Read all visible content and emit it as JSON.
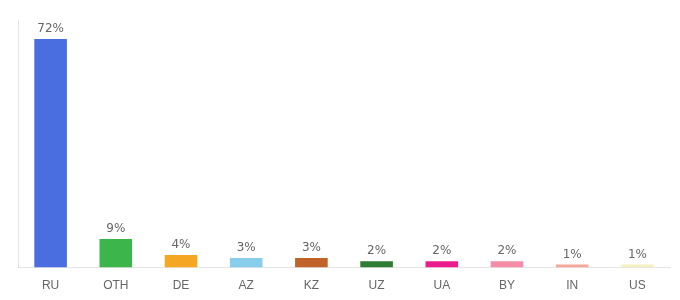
{
  "chart_data": {
    "type": "bar",
    "categories": [
      "RU",
      "OTH",
      "DE",
      "AZ",
      "KZ",
      "UZ",
      "UA",
      "BY",
      "IN",
      "US"
    ],
    "values": [
      72,
      9,
      4,
      3,
      3,
      2,
      2,
      2,
      1,
      1
    ],
    "value_labels": [
      "72%",
      "9%",
      "4%",
      "3%",
      "3%",
      "2%",
      "2%",
      "2%",
      "1%",
      "1%"
    ],
    "colors": [
      "#4a6ee0",
      "#3cb54a",
      "#f5a623",
      "#87ceeb",
      "#c0622a",
      "#2d7d32",
      "#e91e8c",
      "#f48ca8",
      "#f4a89a",
      "#f5f0c0"
    ],
    "ylim": [
      0,
      78
    ],
    "data_labels": true,
    "tick_labels": "x",
    "grid": false
  }
}
